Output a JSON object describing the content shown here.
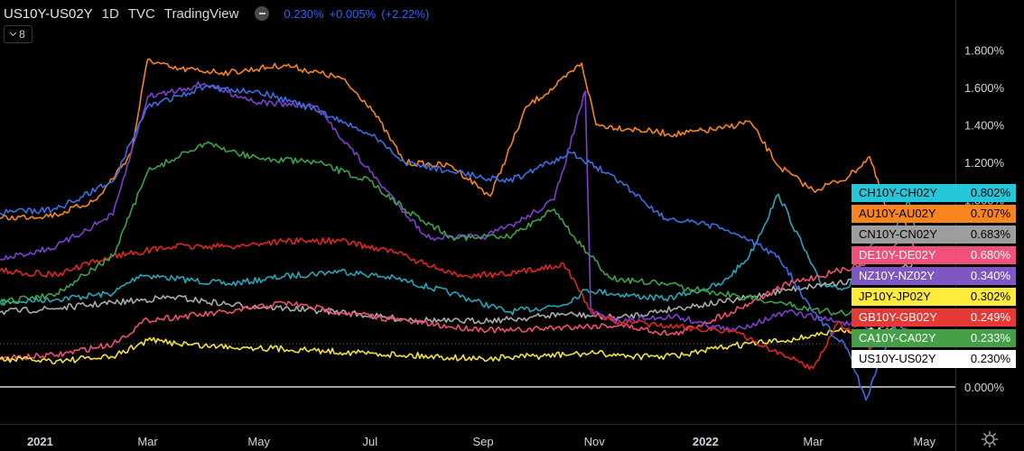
{
  "header": {
    "symbol": "US10Y-US02Y",
    "interval": "1D",
    "source": "TVC",
    "platform": "TradingView",
    "price": "0.230%",
    "change": "+0.005%",
    "change_pct": "(+2.22%)",
    "toggle_icon": "minus-toggle-icon",
    "colors": {
      "quote": "#2962ff"
    }
  },
  "indicator_counter": {
    "value": "8",
    "icon": "chevron-down-icon"
  },
  "settings_icon": "gear-icon",
  "chart_data": {
    "type": "line",
    "title": "US10Y-US02Y",
    "x_tick_labels": [
      "2021",
      "Mar",
      "May",
      "Jul",
      "Sep",
      "Nov",
      "2022",
      "Mar",
      "May"
    ],
    "y_tick_labels": [
      "1.800%",
      "1.600%",
      "1.400%",
      "1.200%",
      "1.000%",
      "0.000%"
    ],
    "ylim": [
      -0.15,
      1.83
    ],
    "xlim": [
      "2020-12-10",
      "2022-05-18"
    ],
    "x_ticks": [
      "2021-01-01",
      "2021-03-01",
      "2021-05-01",
      "2021-07-01",
      "2021-09-01",
      "2021-11-01",
      "2022-01-01",
      "2022-03-01",
      "2022-05-01"
    ],
    "y_ticks": [
      1.8,
      1.6,
      1.4,
      1.2,
      1.0,
      0.0
    ],
    "grid": false,
    "zero_line": true,
    "legend_placement": "right",
    "series": [
      {
        "name": "CH10Y-CH02Y",
        "value_label": "0.802%",
        "color": "#26a6b8",
        "label_bg": "#26c6da",
        "text": "light",
        "dates": [
          "2020-12-10",
          "2021-01-10",
          "2021-02-10",
          "2021-02-25",
          "2021-03-15",
          "2021-04-15",
          "2021-05-15",
          "2021-06-15",
          "2021-07-15",
          "2021-08-15",
          "2021-09-15",
          "2021-10-15",
          "2021-10-28",
          "2021-11-10",
          "2021-12-10",
          "2022-01-10",
          "2022-01-25",
          "2022-02-10",
          "2022-03-05",
          "2022-03-20",
          "2022-04-05",
          "2022-04-15",
          "2022-04-22",
          "2022-04-27"
        ],
        "values": [
          0.45,
          0.47,
          0.5,
          0.6,
          0.58,
          0.55,
          0.59,
          0.62,
          0.58,
          0.5,
          0.4,
          0.44,
          0.52,
          0.5,
          0.47,
          0.55,
          0.7,
          1.03,
          0.55,
          0.53,
          0.8,
          0.85,
          1.0,
          0.8
        ]
      },
      {
        "name": "AU10Y-AU02Y",
        "value_label": "0.707%",
        "color": "#f5841f",
        "label_bg": "#f7841f",
        "text": "light",
        "dates": [
          "2020-12-10",
          "2021-01-10",
          "2021-02-01",
          "2021-02-20",
          "2021-03-01",
          "2021-03-15",
          "2021-04-15",
          "2021-05-15",
          "2021-06-15",
          "2021-07-01",
          "2021-07-20",
          "2021-08-15",
          "2021-09-05",
          "2021-09-25",
          "2021-10-10",
          "2021-10-25",
          "2021-11-02",
          "2021-11-20",
          "2021-12-15",
          "2022-01-10",
          "2022-01-25",
          "2022-02-10",
          "2022-03-01",
          "2022-03-20",
          "2022-04-01",
          "2022-04-10",
          "2022-04-20",
          "2022-04-27"
        ],
        "values": [
          0.9,
          0.92,
          1.0,
          1.25,
          1.75,
          1.7,
          1.68,
          1.72,
          1.65,
          1.5,
          1.2,
          1.18,
          1.02,
          1.5,
          1.6,
          1.73,
          1.4,
          1.38,
          1.35,
          1.38,
          1.42,
          1.18,
          1.05,
          1.12,
          1.23,
          0.95,
          0.9,
          0.71
        ]
      },
      {
        "name": "CN10Y-CN02Y",
        "value_label": "0.683%",
        "color": "#aaaaaa",
        "label_bg": "#9e9e9e",
        "text": "light",
        "dates": [
          "2020-12-10",
          "2021-01-10",
          "2021-02-10",
          "2021-03-15",
          "2021-04-15",
          "2021-05-15",
          "2021-06-15",
          "2021-07-10",
          "2021-08-15",
          "2021-09-15",
          "2021-10-15",
          "2021-11-15",
          "2021-12-15",
          "2022-01-15",
          "2022-02-15",
          "2022-03-15",
          "2022-04-10",
          "2022-04-27"
        ],
        "values": [
          0.4,
          0.42,
          0.45,
          0.48,
          0.44,
          0.42,
          0.4,
          0.37,
          0.35,
          0.36,
          0.39,
          0.37,
          0.42,
          0.46,
          0.52,
          0.56,
          0.58,
          0.68
        ]
      },
      {
        "name": "DE10Y-DE02Y",
        "value_label": "0.680%",
        "color": "#f0506e",
        "label_bg": "#f0507a",
        "text": "dark",
        "dates": [
          "2020-12-10",
          "2021-01-10",
          "2021-02-10",
          "2021-03-01",
          "2021-04-15",
          "2021-05-15",
          "2021-06-15",
          "2021-07-15",
          "2021-08-15",
          "2021-09-15",
          "2021-10-15",
          "2021-11-15",
          "2021-12-15",
          "2022-01-15",
          "2022-02-15",
          "2022-03-15",
          "2022-04-10",
          "2022-04-22",
          "2022-04-27"
        ],
        "values": [
          0.15,
          0.17,
          0.23,
          0.36,
          0.4,
          0.45,
          0.4,
          0.36,
          0.32,
          0.3,
          0.32,
          0.33,
          0.28,
          0.4,
          0.55,
          0.62,
          0.7,
          0.85,
          0.68
        ]
      },
      {
        "name": "NZ10Y-NZ02Y",
        "value_label": "0.340%",
        "color": "#7e3fd0",
        "label_bg": "#7e57c2",
        "text": "dark",
        "dates": [
          "2020-12-10",
          "2021-01-10",
          "2021-02-10",
          "2021-03-01",
          "2021-04-01",
          "2021-05-01",
          "2021-06-01",
          "2021-07-01",
          "2021-08-01",
          "2021-09-01",
          "2021-09-20",
          "2021-10-10",
          "2021-10-27",
          "2021-10-30",
          "2021-11-15",
          "2021-12-15",
          "2022-01-15",
          "2022-02-15",
          "2022-03-15",
          "2022-04-05",
          "2022-04-20",
          "2022-04-27"
        ],
        "values": [
          0.68,
          0.75,
          0.92,
          1.55,
          1.62,
          1.52,
          1.5,
          1.15,
          0.8,
          0.8,
          0.88,
          1.0,
          1.58,
          0.4,
          0.35,
          0.38,
          0.3,
          0.4,
          0.35,
          0.3,
          0.4,
          0.34
        ]
      },
      {
        "name": "JP10Y-JP02Y",
        "value_label": "0.302%",
        "color": "#f2e33a",
        "label_bg": "#ffeb3b",
        "text": "light",
        "dates": [
          "2020-12-10",
          "2021-01-10",
          "2021-02-10",
          "2021-03-01",
          "2021-04-01",
          "2021-05-01",
          "2021-07-01",
          "2021-09-01",
          "2021-11-01",
          "2021-12-01",
          "2021-12-20",
          "2022-01-15",
          "2022-02-15",
          "2022-03-15",
          "2022-04-15",
          "2022-04-27"
        ],
        "values": [
          0.15,
          0.14,
          0.16,
          0.25,
          0.22,
          0.21,
          0.18,
          0.15,
          0.18,
          0.16,
          0.17,
          0.22,
          0.25,
          0.3,
          0.3,
          0.3
        ]
      },
      {
        "name": "GB10Y-GB02Y",
        "value_label": "0.249%",
        "color": "#dd2727",
        "label_bg": "#e53935",
        "text": "dark",
        "dates": [
          "2020-12-10",
          "2021-01-10",
          "2021-02-10",
          "2021-03-15",
          "2021-04-15",
          "2021-05-15",
          "2021-06-15",
          "2021-07-15",
          "2021-08-15",
          "2021-09-15",
          "2021-10-15",
          "2021-11-01",
          "2021-11-15",
          "2021-12-15",
          "2022-01-15",
          "2022-02-15",
          "2022-03-01",
          "2022-03-15",
          "2022-04-01",
          "2022-04-15",
          "2022-04-27"
        ],
        "values": [
          0.62,
          0.6,
          0.7,
          0.75,
          0.75,
          0.78,
          0.78,
          0.72,
          0.6,
          0.6,
          0.66,
          0.38,
          0.35,
          0.32,
          0.3,
          0.16,
          0.1,
          0.35,
          0.2,
          0.35,
          0.25
        ]
      },
      {
        "name": "CA10Y-CA02Y",
        "value_label": "0.233%",
        "color": "#3ca14a",
        "label_bg": "#43a047",
        "text": "dark",
        "dates": [
          "2020-12-10",
          "2021-01-10",
          "2021-02-10",
          "2021-03-01",
          "2021-04-01",
          "2021-05-01",
          "2021-06-01",
          "2021-07-01",
          "2021-07-20",
          "2021-08-15",
          "2021-09-15",
          "2021-10-10",
          "2021-10-25",
          "2021-11-10",
          "2021-12-10",
          "2022-01-10",
          "2022-02-10",
          "2022-03-10",
          "2022-04-05",
          "2022-04-27"
        ],
        "values": [
          0.45,
          0.5,
          0.7,
          1.15,
          1.3,
          1.22,
          1.2,
          1.1,
          0.95,
          0.8,
          0.8,
          0.95,
          0.75,
          0.58,
          0.55,
          0.5,
          0.45,
          0.4,
          0.38,
          0.23
        ]
      },
      {
        "name": "US10Y-US02Y",
        "value_label": "0.230%",
        "color": "#3d6ee0",
        "label_bg": "#ffffff",
        "text": "light",
        "dates": [
          "2020-12-10",
          "2021-01-10",
          "2021-02-10",
          "2021-03-01",
          "2021-04-01",
          "2021-05-01",
          "2021-06-01",
          "2021-07-01",
          "2021-07-20",
          "2021-08-15",
          "2021-09-15",
          "2021-10-20",
          "2021-11-15",
          "2021-12-10",
          "2022-01-10",
          "2022-02-10",
          "2022-03-01",
          "2022-03-20",
          "2022-03-30",
          "2022-04-05",
          "2022-04-15",
          "2022-04-27"
        ],
        "values": [
          0.93,
          0.95,
          1.1,
          1.5,
          1.6,
          1.58,
          1.48,
          1.35,
          1.2,
          1.15,
          1.1,
          1.25,
          1.1,
          0.9,
          0.85,
          0.7,
          0.4,
          0.2,
          -0.07,
          0.1,
          0.35,
          0.23
        ]
      }
    ]
  }
}
